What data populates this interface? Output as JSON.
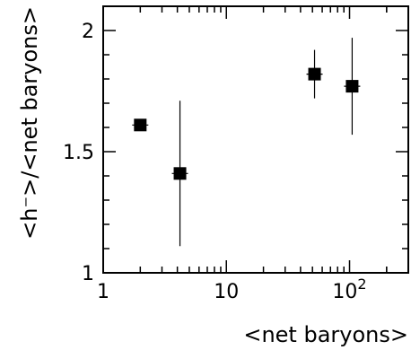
{
  "chart_data": {
    "type": "scatter",
    "x_scale": "log",
    "xlim": [
      1,
      300
    ],
    "ylim": [
      1,
      2.1
    ],
    "xlabel": "<net baryons>",
    "ylabel": "<h⁻>/<net baryons>",
    "x_ticks": [
      {
        "value": 1,
        "label": "1"
      },
      {
        "value": 10,
        "label": "10"
      },
      {
        "value": 100,
        "label_base": "10",
        "label_exp": "2"
      }
    ],
    "y_ticks": [
      {
        "value": 1,
        "label": "1"
      },
      {
        "value": 1.5,
        "label": "1.5"
      },
      {
        "value": 2,
        "label": "2"
      }
    ],
    "points": [
      {
        "x": 2.0,
        "y": 1.61,
        "y_err_low": 0.02,
        "y_err_high": 0.02
      },
      {
        "x": 4.2,
        "y": 1.41,
        "y_err_low": 0.3,
        "y_err_high": 0.3
      },
      {
        "x": 52,
        "y": 1.82,
        "y_err_low": 0.1,
        "y_err_high": 0.1
      },
      {
        "x": 105,
        "y": 1.77,
        "y_err_low": 0.2,
        "y_err_high": 0.2
      }
    ],
    "marker": "square",
    "marker_color": "#000000",
    "grid": false
  }
}
